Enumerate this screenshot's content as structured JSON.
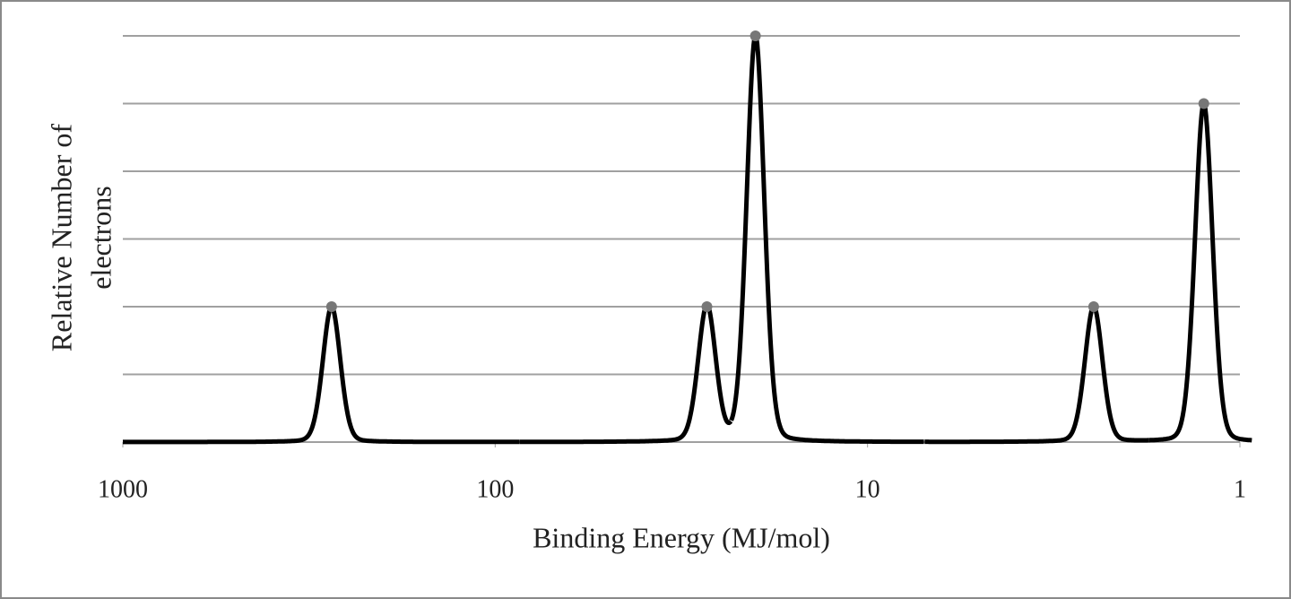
{
  "chart_data": {
    "type": "spectrum",
    "x_label": "Binding Energy (MJ/mol)",
    "y_label": [
      "Relative Number of",
      "electrons"
    ],
    "x": [
      275,
      27,
      20,
      2.47,
      1.25
    ],
    "values": [
      2,
      2,
      6,
      2,
      5
    ],
    "color": "#000000",
    "xlim": [
      1000,
      1
    ],
    "xticks": [
      1000,
      100,
      10,
      1
    ],
    "xlog": true,
    "ylim": [
      0,
      6
    ],
    "yticks": [
      0,
      1,
      2,
      3,
      4,
      5,
      6
    ],
    "grid": true
  }
}
